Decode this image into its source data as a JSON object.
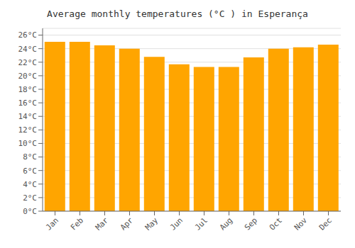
{
  "chart_data": {
    "type": "bar",
    "title": "Average monthly temperatures (°C ) in Esperança",
    "categories": [
      "Jan",
      "Feb",
      "Mar",
      "Apr",
      "May",
      "Jun",
      "Jul",
      "Aug",
      "Sep",
      "Oct",
      "Nov",
      "Dec"
    ],
    "values": [
      25.0,
      25.0,
      24.5,
      24.0,
      22.8,
      21.7,
      21.3,
      21.3,
      22.7,
      24.0,
      24.2,
      24.6
    ],
    "color": "#FFA500",
    "ylim": [
      0,
      27
    ],
    "yticks": [
      {
        "value": 0,
        "label": "0°C"
      },
      {
        "value": 2,
        "label": "2°C"
      },
      {
        "value": 4,
        "label": "4°C"
      },
      {
        "value": 6,
        "label": "6°C"
      },
      {
        "value": 8,
        "label": "8°C"
      },
      {
        "value": 10,
        "label": "10°C"
      },
      {
        "value": 12,
        "label": "12°C"
      },
      {
        "value": 14,
        "label": "14°C"
      },
      {
        "value": 16,
        "label": "16°C"
      },
      {
        "value": 18,
        "label": "18°C"
      },
      {
        "value": 20,
        "label": "20°C"
      },
      {
        "value": 22,
        "label": "22°C"
      },
      {
        "value": 24,
        "label": "24°C"
      },
      {
        "value": 26,
        "label": "26°C"
      }
    ],
    "grid": true
  }
}
